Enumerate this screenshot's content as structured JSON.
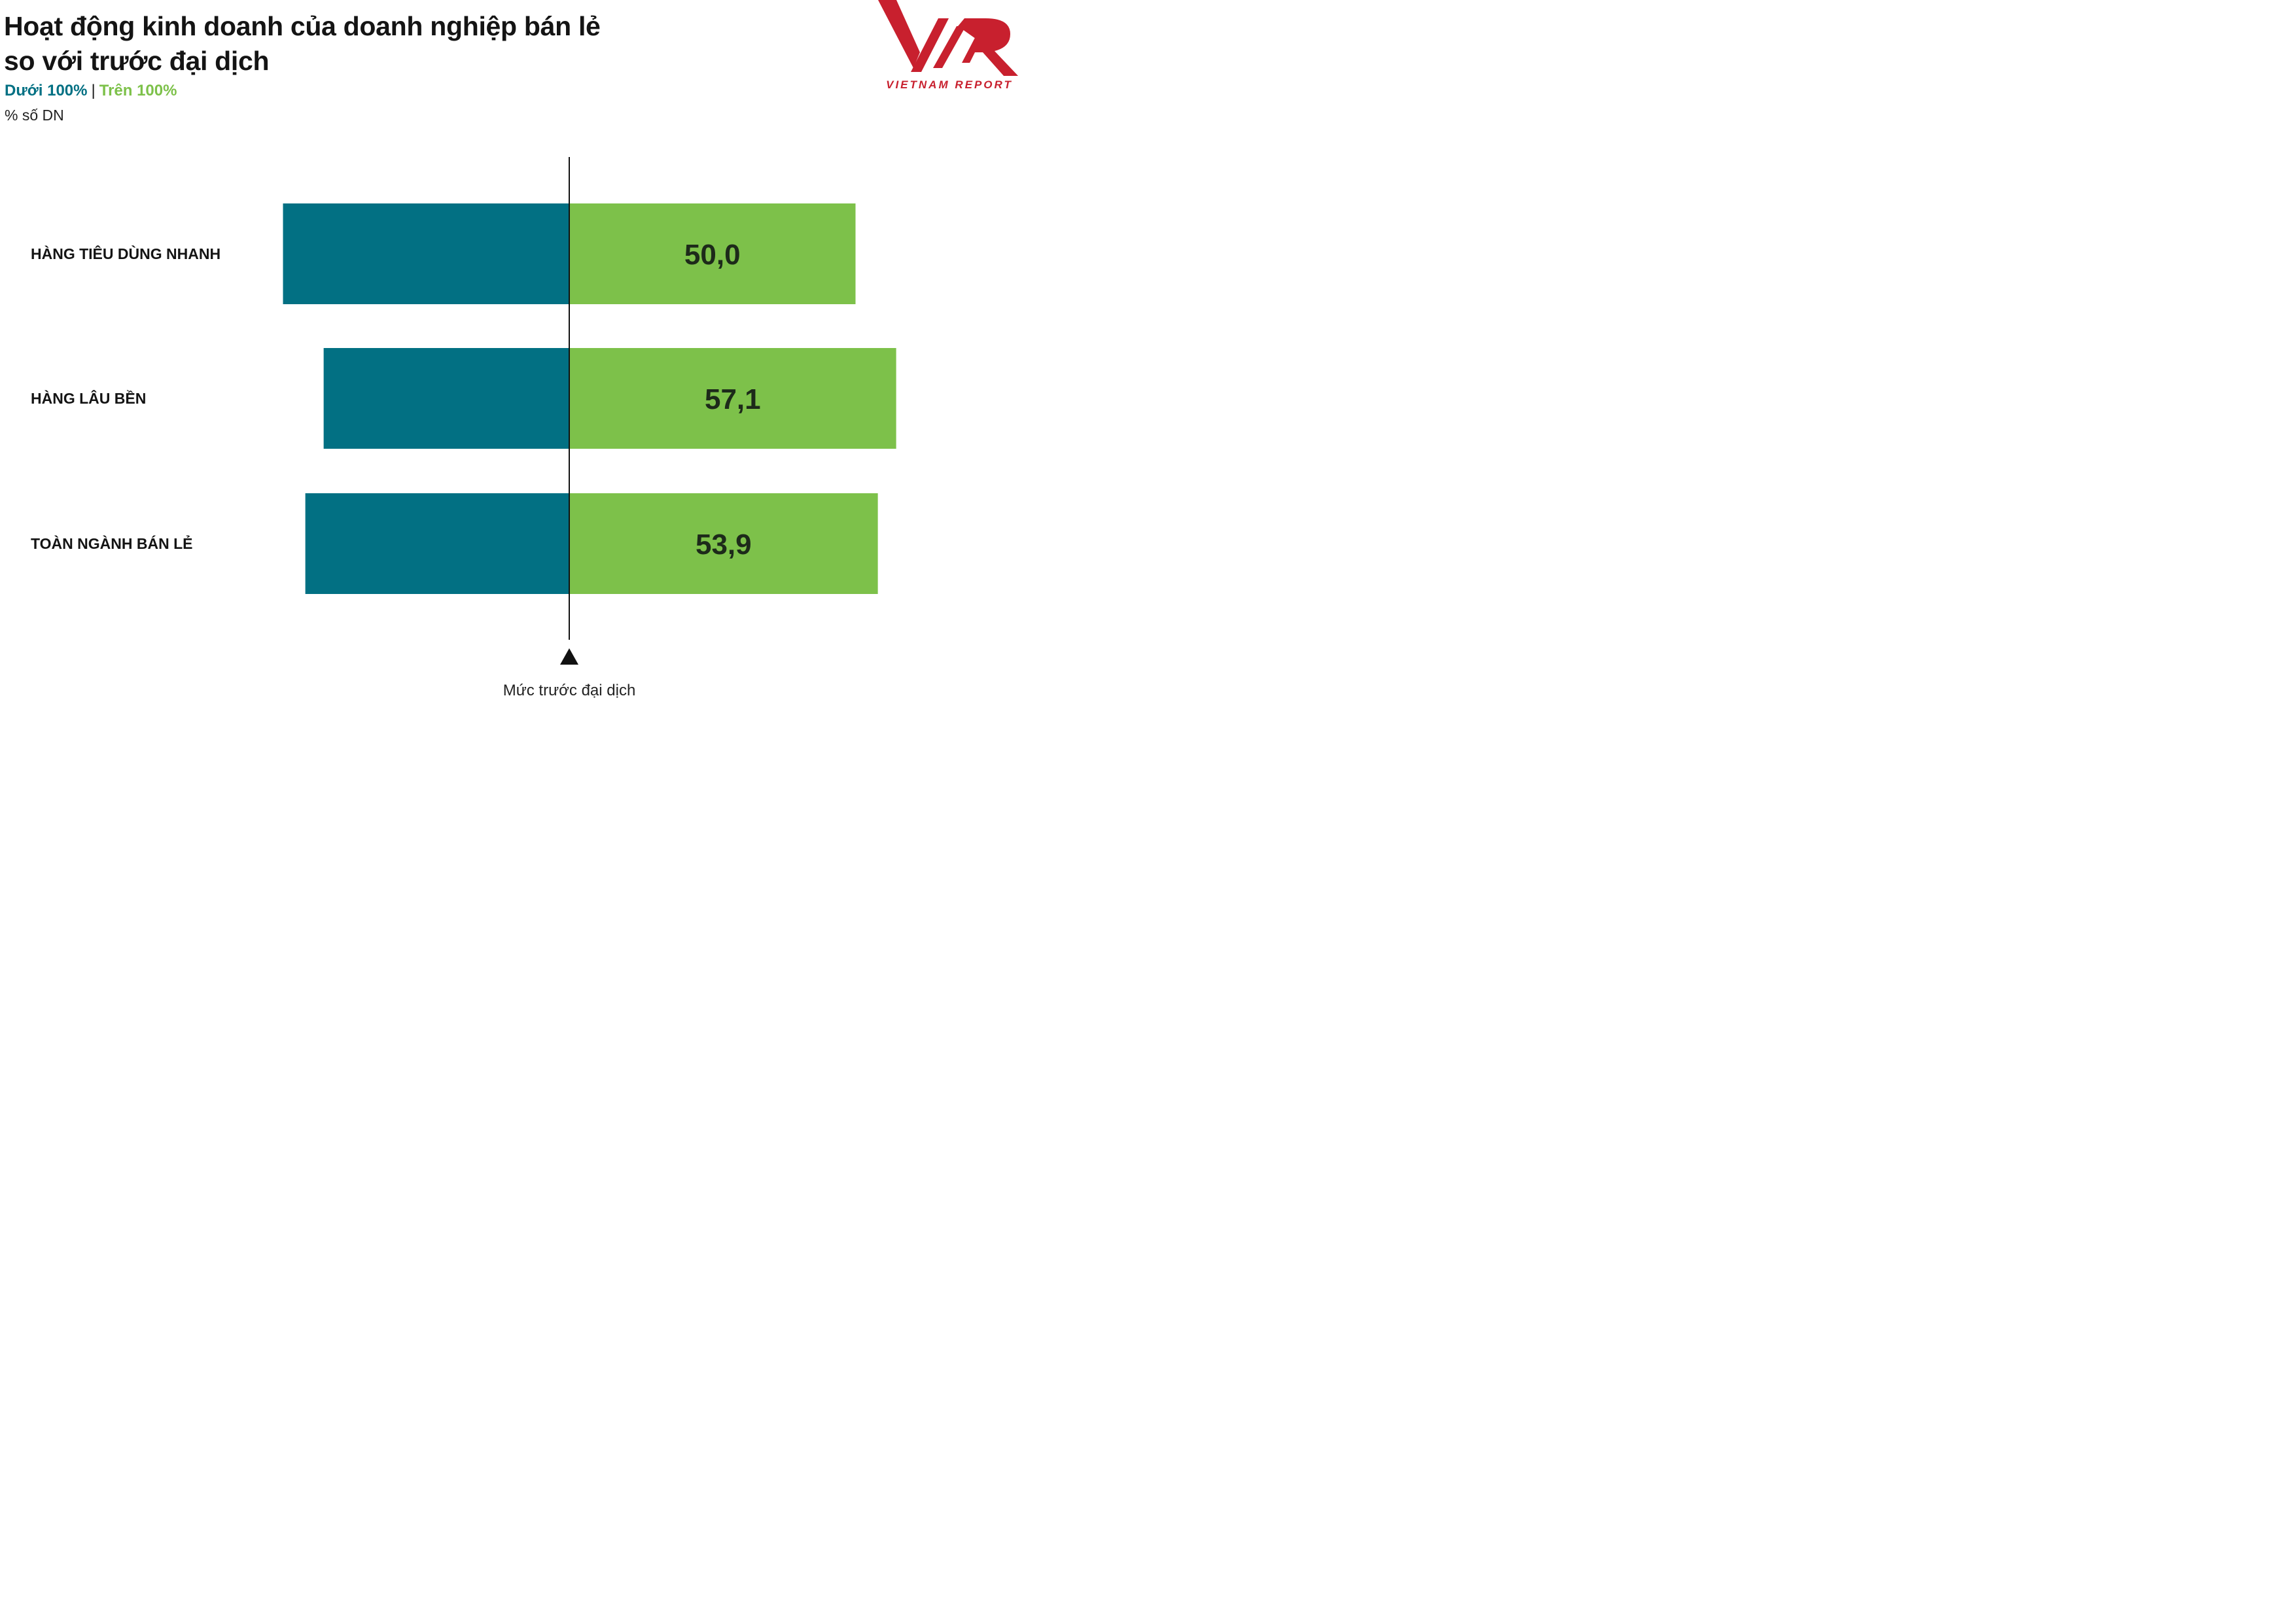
{
  "chart_data": {
    "type": "bar",
    "orientation": "horizontal-diverging",
    "title": "Hoạt động kinh doanh của doanh nghiệp bán lẻ so với trước đại dịch",
    "title_lines": [
      "Hoạt động kinh doanh của doanh nghiệp bán lẻ",
      "so với trước đại dịch"
    ],
    "unit": "% số DN",
    "categories": [
      "HÀNG TIÊU DÙNG NHANH",
      "HÀNG LÂU BỀN",
      "TOÀN NGÀNH BÁN LẺ"
    ],
    "series": [
      {
        "name": "Dưới 100%",
        "values": [
          50.0,
          42.9,
          46.1
        ],
        "color": "#027083"
      },
      {
        "name": "Trên 100%",
        "values": [
          50.0,
          57.1,
          53.9
        ],
        "color": "#7dc14a"
      }
    ],
    "value_labels": [
      "50,0",
      "57,1",
      "53,9"
    ],
    "reference_line_label": "Mức trước đại dịch",
    "legend_placement": "top-left",
    "grid": false
  },
  "legend": {
    "separator": "|"
  },
  "logo": {
    "text": "VIETNAM REPORT",
    "icon": "vnr-logo-icon",
    "color": "#c8202e"
  }
}
